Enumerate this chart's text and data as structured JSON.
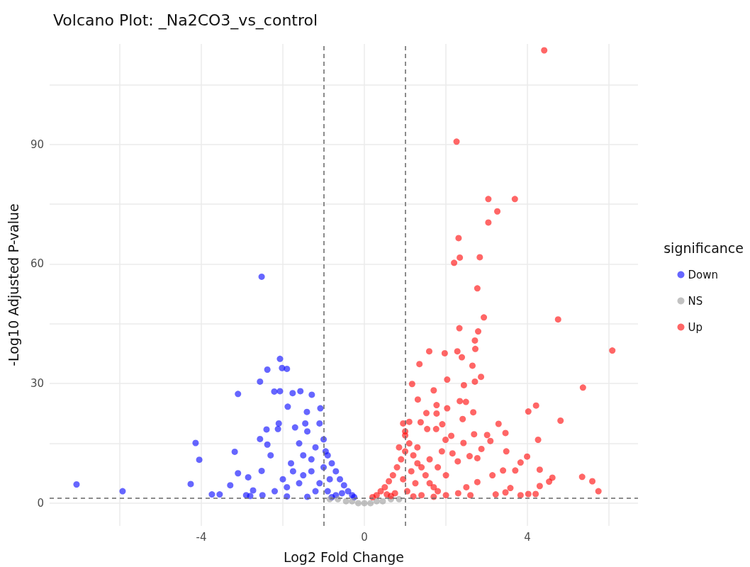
{
  "chart_data": {
    "type": "scatter",
    "title": "Volcano Plot: _Na2CO3_vs_control",
    "xlabel": "Log2 Fold Change",
    "ylabel": "-Log10 Adjusted P-value",
    "legend_title": "significance",
    "xlim": [
      -7.72,
      6.71
    ],
    "ylim": [
      -5.7,
      115.2
    ],
    "xticks": [
      {
        "value": -6,
        "label": null
      },
      -4,
      {
        "value": -2,
        "label": null
      },
      0,
      {
        "value": 2,
        "label": null
      },
      4,
      {
        "value": 6,
        "label": null
      }
    ],
    "yticks": [
      0,
      {
        "value": 15,
        "label": null
      },
      30,
      {
        "value": 45,
        "label": null
      },
      60,
      {
        "value": 75,
        "label": null
      },
      90,
      {
        "value": 105,
        "label": null
      }
    ],
    "grid": true,
    "legend": "right",
    "marker": "circle",
    "ref_lines": [
      {
        "axis": "x",
        "value": -1,
        "color": "#666666",
        "line_style": "dashed"
      },
      {
        "axis": "x",
        "value": 1,
        "color": "#666666",
        "line_style": "dashed"
      },
      {
        "axis": "y",
        "value": 1.3,
        "color": "#666666",
        "line_style": "dashed"
      }
    ],
    "series": [
      {
        "name": "Down",
        "color": "#0000ff",
        "x": [
          -7.06,
          -5.93,
          -4.26,
          -4.14,
          -4.05,
          -3.18,
          -3.1,
          -3.1,
          -3.74,
          -3.55,
          -2.52,
          -2.38,
          -2.52,
          -2.56,
          -2.38,
          -2.07,
          -2.02,
          -1.9,
          -2.21,
          -2.07,
          -1.76,
          -1.88,
          -1.57,
          -1.29,
          -1.41,
          -1.08,
          -2.4,
          -2.56,
          -2.12,
          -2.73,
          -2.85,
          -3.29,
          -2.9,
          -1.8,
          -1.6,
          -1.5,
          -1.4,
          -1.3,
          -1.2,
          -1.1,
          -1.0,
          -0.9,
          -0.8,
          -0.7,
          -0.6,
          -0.5,
          -0.4,
          -0.3,
          -0.25,
          -1.6,
          -1.9,
          -2.2,
          -1.2,
          -0.9,
          -0.7,
          -1.5,
          -1.3,
          -1.0,
          -0.85,
          -1.7,
          -1.45,
          -0.95,
          -0.55,
          -2.0,
          -1.75,
          -1.1,
          -2.3,
          -2.1,
          -0.8,
          -1.4,
          -2.5,
          -1.9,
          -2.8
        ],
        "values": [
          4.7,
          3.0,
          4.8,
          15.1,
          10.9,
          12.9,
          7.5,
          27.4,
          2.2,
          2.2,
          8.1,
          14.7,
          56.8,
          30.5,
          33.5,
          36.2,
          33.9,
          33.7,
          28.0,
          28.1,
          27.6,
          24.2,
          28.1,
          27.2,
          22.9,
          23.8,
          18.5,
          16.1,
          18.6,
          3.2,
          6.5,
          4.5,
          2.0,
          10,
          15,
          12,
          18,
          8,
          14,
          20,
          16,
          12,
          10,
          8,
          6,
          4.5,
          3,
          2,
          1.5,
          5,
          4,
          3,
          3,
          3,
          2,
          7,
          11,
          9,
          6,
          19,
          20,
          13,
          2.5,
          6,
          8,
          5,
          12,
          20,
          1.5,
          1.6,
          2,
          1.7,
          1.8
        ]
      },
      {
        "name": "NS",
        "color": "#999999",
        "x": [
          -0.85,
          -0.65,
          -0.45,
          -0.3,
          -0.15,
          0,
          0.15,
          0.3,
          0.45,
          0.65,
          0.85
        ],
        "values": [
          1,
          1,
          0.5,
          0.5,
          0,
          0,
          0,
          0.5,
          0.5,
          1,
          1
        ]
      },
      {
        "name": "Up",
        "color": "#ff0000",
        "x": [
          4.41,
          2.26,
          3.04,
          3.69,
          3.26,
          3.04,
          2.31,
          2.34,
          2.83,
          2.2,
          2.77,
          2.93,
          4.75,
          2.33,
          2.79,
          6.08,
          2.71,
          2.72,
          2.28,
          2.39,
          1.97,
          1.59,
          1.35,
          2.65,
          2.86,
          2.71,
          2.03,
          2.44,
          1.17,
          5.36,
          1.7,
          2.34,
          2.49,
          4.21,
          4.02,
          2.03,
          1.77,
          2.67,
          1.31,
          4.81,
          3.29,
          3.46,
          4.26,
          2.41,
          1.1,
          3.01,
          3.09,
          3.48,
          3.99,
          3.83,
          4.3,
          5.34,
          5.59,
          5.74,
          4.61,
          4.53,
          4.3,
          4.02,
          4.2,
          3.83,
          3.58,
          3.4,
          3.14,
          3.7,
          2.87,
          2.77,
          2.58,
          2.43,
          2.69,
          1.99,
          2.13,
          1.54,
          1.76,
          1.91,
          1.52,
          1.77,
          1.38,
          2.16,
          2.29,
          2.77,
          3.22,
          3.46,
          0.2,
          0.3,
          0.4,
          0.5,
          0.6,
          0.7,
          0.8,
          0.9,
          1.0,
          0.85,
          1.0,
          1.1,
          1.2,
          1.3,
          1.4,
          1.5,
          1.6,
          1.7,
          1.8,
          2.0,
          2.3,
          2.5,
          0.95,
          1.15,
          1.25,
          1.05,
          0.75,
          0.65,
          1.4,
          1.6,
          1.8,
          2.0,
          1.9,
          1.3,
          1.0,
          0.95,
          2.6,
          0.55,
          1.2,
          1.7
        ],
        "values": [
          113.6,
          90.7,
          76.3,
          76.3,
          73.2,
          70.4,
          66.5,
          61.6,
          61.7,
          60.3,
          53.9,
          46.6,
          46.1,
          43.9,
          43.1,
          38.3,
          40.8,
          38.7,
          38.1,
          36.6,
          37.6,
          38.1,
          34.9,
          34.5,
          31.7,
          30.5,
          31.0,
          29.6,
          29.9,
          29.0,
          28.3,
          25.6,
          25.4,
          24.5,
          23.0,
          23.8,
          24.6,
          22.8,
          26.0,
          20.7,
          19.9,
          17.6,
          15.9,
          21.1,
          20.4,
          17.1,
          15.6,
          13.0,
          11.7,
          10.2,
          8.4,
          6.6,
          5.5,
          3.0,
          6.4,
          5.4,
          4.3,
          2.3,
          2.3,
          2.0,
          3.8,
          8.2,
          7.0,
          8.2,
          13.6,
          11.3,
          11.8,
          15.1,
          17.3,
          15.9,
          16.9,
          18.6,
          18.6,
          19.8,
          22.6,
          22.5,
          20.3,
          12.5,
          10.5,
          5.3,
          2.2,
          2.7,
          1.5,
          2,
          3,
          4,
          5.5,
          7,
          9,
          11,
          13,
          14,
          17,
          15,
          12,
          10,
          9,
          7,
          5,
          4,
          3,
          2,
          2.5,
          4,
          6,
          8,
          5,
          3,
          2.5,
          1.8,
          2,
          11,
          9,
          7,
          13,
          14,
          18,
          20,
          2.0,
          2.2,
          1.7,
          1.6
        ]
      }
    ]
  }
}
